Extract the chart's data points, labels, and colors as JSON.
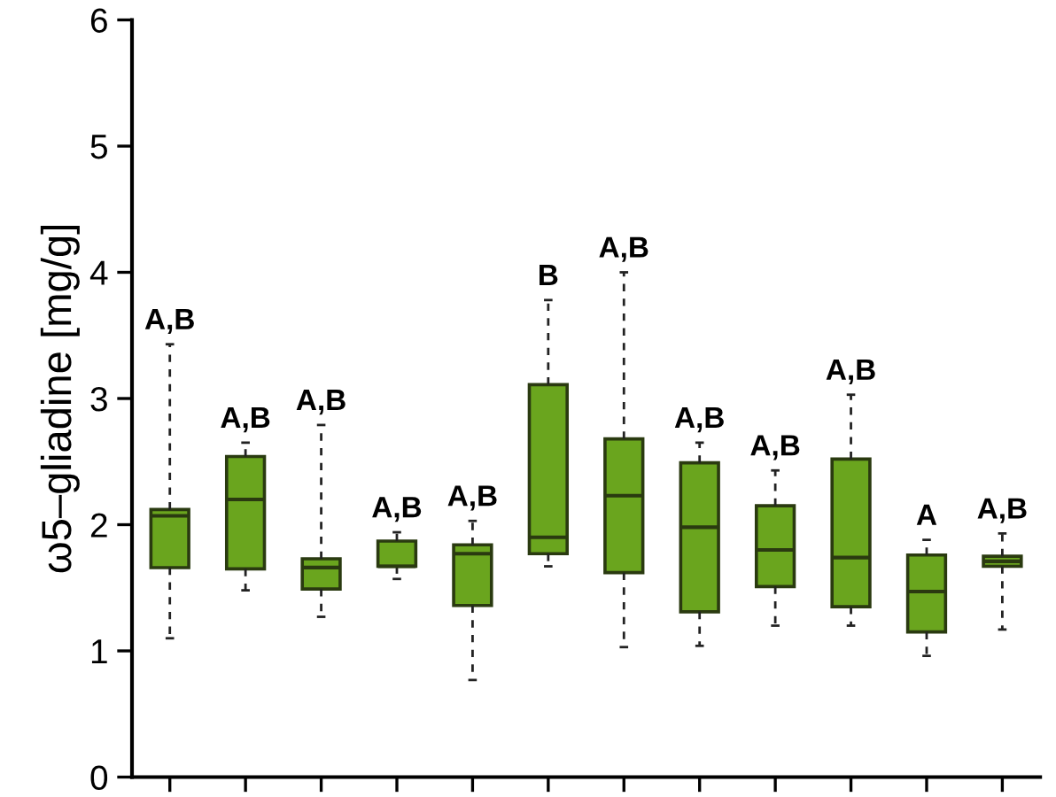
{
  "chart_data": {
    "type": "box",
    "ylabel": "ω5–gliadine [mg/g]",
    "color": "#6aa51e",
    "categories": [
      null,
      null,
      null,
      null,
      null,
      null,
      null,
      null,
      null,
      null,
      null,
      null
    ],
    "boxes": [
      {
        "low": 1.1,
        "q1": 1.66,
        "median": 2.07,
        "q3": 2.12,
        "high": 3.43
      },
      {
        "low": 1.48,
        "q1": 1.65,
        "median": 2.2,
        "q3": 2.54,
        "high": 2.65
      },
      {
        "low": 1.27,
        "q1": 1.49,
        "median": 1.66,
        "q3": 1.73,
        "high": 2.79
      },
      {
        "low": 1.57,
        "q1": 1.67,
        "median": 1.67,
        "q3": 1.87,
        "high": 1.94
      },
      {
        "low": 0.77,
        "q1": 1.36,
        "median": 1.77,
        "q3": 1.84,
        "high": 2.03
      },
      {
        "low": 1.67,
        "q1": 1.77,
        "median": 1.9,
        "q3": 3.11,
        "high": 3.78
      },
      {
        "low": 1.03,
        "q1": 1.62,
        "median": 2.23,
        "q3": 2.68,
        "high": 4.0
      },
      {
        "low": 1.04,
        "q1": 1.31,
        "median": 1.98,
        "q3": 2.49,
        "high": 2.65
      },
      {
        "low": 1.2,
        "q1": 1.51,
        "median": 1.8,
        "q3": 2.15,
        "high": 2.43
      },
      {
        "low": 1.2,
        "q1": 1.35,
        "median": 1.74,
        "q3": 2.52,
        "high": 3.03
      },
      {
        "low": 0.96,
        "q1": 1.15,
        "median": 1.47,
        "q3": 1.76,
        "high": 1.88
      },
      {
        "low": 1.17,
        "q1": 1.67,
        "median": 1.71,
        "q3": 1.75,
        "high": 1.93
      }
    ],
    "annotations": [
      "A,B",
      "A,B",
      "A,B",
      "A,B",
      "A,B",
      "B",
      "A,B",
      "A,B",
      "A,B",
      "A,B",
      "A",
      "A,B"
    ],
    "ylim": [
      0,
      6
    ],
    "yticks": [
      0,
      1,
      2,
      3,
      4,
      5,
      6
    ],
    "tick_labels": "y",
    "grid": false
  }
}
